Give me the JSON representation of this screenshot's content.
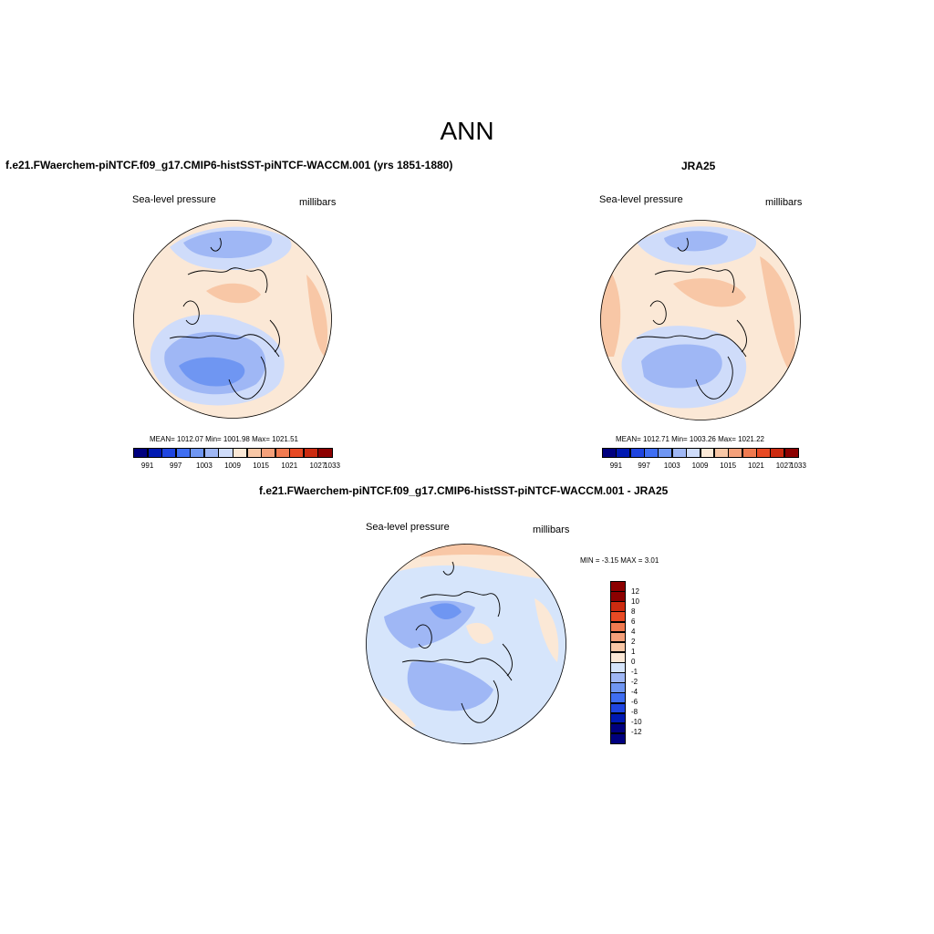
{
  "title": "ANN",
  "colors": {
    "abs_palette": [
      "#00007f",
      "#0019b2",
      "#1f45e0",
      "#3f6ef2",
      "#6f96f2",
      "#9fb7f5",
      "#cfdcfa",
      "#fbe8d6",
      "#f8c7a6",
      "#f4a07a",
      "#f07a50",
      "#e84a24",
      "#cc2b10",
      "#8c0000"
    ],
    "diff_palette": [
      "#00007f",
      "#0019b2",
      "#1f45e0",
      "#3f6ef2",
      "#6f96f2",
      "#9fb7f5",
      "#d6e5fb",
      "#fbe8d6",
      "#f8c7a6",
      "#f4a07a",
      "#f07a50",
      "#e84a24",
      "#cc2b10",
      "#8c0000"
    ]
  },
  "panels": [
    {
      "title": "f.e21.FWaerchem-piNTCF.f09_g17.CMIP6-histSST-piNTCF-WACCM.001 (yrs 1851-1880)",
      "variable": "Sea-level pressure",
      "units": "millibars",
      "stats": "MEAN= 1012.07  Min= 1001.98  Max= 1021.51",
      "colorbar_labels": [
        "991",
        "997",
        "1003",
        "1009",
        "1015",
        "1021",
        "1027",
        "1033"
      ]
    },
    {
      "title": "JRA25",
      "variable": "Sea-level pressure",
      "units": "millibars",
      "stats": "MEAN= 1012.71  Min= 1003.26  Max= 1021.22",
      "colorbar_labels": [
        "991",
        "997",
        "1003",
        "1009",
        "1015",
        "1021",
        "1027",
        "1033"
      ]
    },
    {
      "title": "f.e21.FWaerchem-piNTCF.f09_g17.CMIP6-histSST-piNTCF-WACCM.001 - JRA25",
      "variable": "Sea-level pressure",
      "units": "millibars",
      "stats": "MIN =  -3.15 MAX =   3.01",
      "colorbar_labels": [
        "12",
        "10",
        "8",
        "6",
        "4",
        "2",
        "1",
        "0",
        "-1",
        "-2",
        "-4",
        "-6",
        "-8",
        "-10",
        "-12"
      ]
    }
  ]
}
